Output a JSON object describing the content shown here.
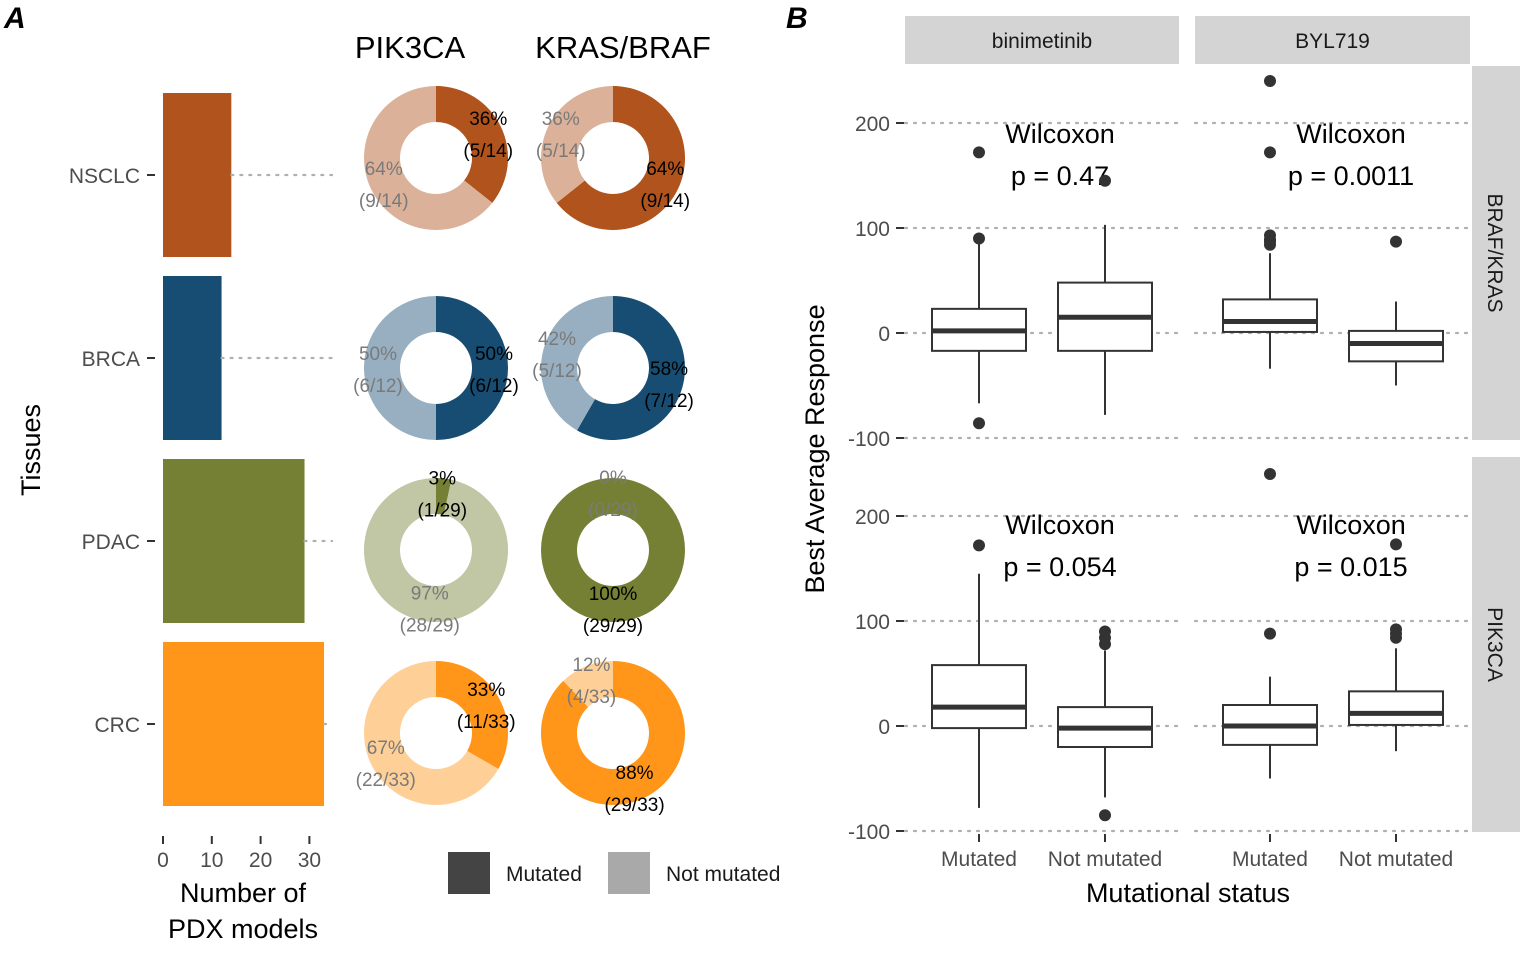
{
  "panel_labels": {
    "a": "A",
    "b": "B"
  },
  "colors": {
    "NSCLC": "#B0531C",
    "BRCA": "#174D72",
    "PDAC": "#758035",
    "CRC": "#FF9519",
    "legend_mutated": "#444444",
    "legend_not_mutated": "#A9A9A9",
    "strip": "#D4D4D4"
  },
  "chart_data": [
    {
      "type": "bar",
      "orientation": "horizontal",
      "categories": [
        "NSCLC",
        "BRCA",
        "PDAC",
        "CRC"
      ],
      "values": [
        14,
        12,
        29,
        33
      ],
      "xlabel": "Number of\nPDX models",
      "ylabel": "Tissues",
      "xlim": [
        0,
        33
      ],
      "xticks": [
        0,
        10,
        20,
        30
      ]
    },
    {
      "type": "pie",
      "variant": "donut",
      "column_titles": [
        "PIK3CA",
        "KRAS/BRAF"
      ],
      "legend": {
        "mutated": "Mutated",
        "not_mutated": "Not mutated"
      },
      "rows": [
        {
          "tissue": "NSCLC",
          "donuts": [
            {
              "gene": "PIK3CA",
              "mutated": 5,
              "total": 14,
              "mut_pct": "36%",
              "mut_frac": "(5/14)",
              "not_pct": "64%",
              "not_frac": "(9/14)"
            },
            {
              "gene": "KRAS/BRAF",
              "mutated": 9,
              "total": 14,
              "mut_pct": "64%",
              "mut_frac": "(9/14)",
              "not_pct": "36%",
              "not_frac": "(5/14)"
            }
          ]
        },
        {
          "tissue": "BRCA",
          "donuts": [
            {
              "gene": "PIK3CA",
              "mutated": 6,
              "total": 12,
              "mut_pct": "50%",
              "mut_frac": "(6/12)",
              "not_pct": "50%",
              "not_frac": "(6/12)"
            },
            {
              "gene": "KRAS/BRAF",
              "mutated": 7,
              "total": 12,
              "mut_pct": "58%",
              "mut_frac": "(7/12)",
              "not_pct": "42%",
              "not_frac": "(5/12)"
            }
          ]
        },
        {
          "tissue": "PDAC",
          "donuts": [
            {
              "gene": "PIK3CA",
              "mutated": 1,
              "total": 29,
              "mut_pct": "3%",
              "mut_frac": "(1/29)",
              "not_pct": "97%",
              "not_frac": "(28/29)"
            },
            {
              "gene": "KRAS/BRAF",
              "mutated": 29,
              "total": 29,
              "mut_pct": "100%",
              "mut_frac": "(29/29)",
              "not_pct": "0%",
              "not_frac": "(0/29)"
            }
          ]
        },
        {
          "tissue": "CRC",
          "donuts": [
            {
              "gene": "PIK3CA",
              "mutated": 11,
              "total": 33,
              "mut_pct": "33%",
              "mut_frac": "(11/33)",
              "not_pct": "67%",
              "not_frac": "(22/33)"
            },
            {
              "gene": "KRAS/BRAF",
              "mutated": 29,
              "total": 33,
              "mut_pct": "88%",
              "mut_frac": "(29/33)",
              "not_pct": "12%",
              "not_frac": "(4/33)"
            }
          ]
        }
      ]
    },
    {
      "type": "box",
      "facet_columns": [
        "binimetinib",
        "BYL719"
      ],
      "facet_rows": [
        "BRAF/KRAS",
        "PIK3CA"
      ],
      "categories": [
        "Mutated",
        "Not mutated"
      ],
      "xlabel": "Mutational status",
      "ylabel": "Best Average Response",
      "ylim": [
        -100,
        240
      ],
      "yticks": [
        -100,
        0,
        100,
        200
      ],
      "panels": [
        {
          "row": "BRAF/KRAS",
          "col": "binimetinib",
          "annotation": [
            "Wilcoxon",
            "p = 0.47"
          ],
          "boxes": [
            {
              "group": "Mutated",
              "whisker_low": -67,
              "q1": -17,
              "median": 2,
              "q3": 23,
              "whisker_high": 85,
              "outliers": [
                -86,
                90,
                172
              ]
            },
            {
              "group": "Not mutated",
              "whisker_low": -78,
              "q1": -17,
              "median": 15,
              "q3": 48,
              "whisker_high": 103,
              "outliers": [
                145
              ]
            }
          ]
        },
        {
          "row": "BRAF/KRAS",
          "col": "BYL719",
          "annotation": [
            "Wilcoxon",
            "p = 0.0011"
          ],
          "boxes": [
            {
              "group": "Mutated",
              "whisker_low": -34,
              "q1": 1,
              "median": 11,
              "q3": 32,
              "whisker_high": 76,
              "outliers": [
                84,
                87,
                89,
                93,
                172,
                240
              ]
            },
            {
              "group": "Not mutated",
              "whisker_low": -50,
              "q1": -27,
              "median": -10,
              "q3": 2,
              "whisker_high": 30,
              "outliers": [
                87
              ]
            }
          ]
        },
        {
          "row": "PIK3CA",
          "col": "binimetinib",
          "annotation": [
            "Wilcoxon",
            "p = 0.054"
          ],
          "boxes": [
            {
              "group": "Mutated",
              "whisker_low": -78,
              "q1": -2,
              "median": 18,
              "q3": 58,
              "whisker_high": 145,
              "outliers": [
                172
              ]
            },
            {
              "group": "Not mutated",
              "whisker_low": -68,
              "q1": -20,
              "median": -2,
              "q3": 18,
              "whisker_high": 72,
              "outliers": [
                -85,
                78,
                84,
                90
              ]
            }
          ]
        },
        {
          "row": "PIK3CA",
          "col": "BYL719",
          "annotation": [
            "Wilcoxon",
            "p = 0.015"
          ],
          "boxes": [
            {
              "group": "Mutated",
              "whisker_low": -50,
              "q1": -18,
              "median": 0,
              "q3": 20,
              "whisker_high": 47,
              "outliers": [
                88,
                240
              ]
            },
            {
              "group": "Not mutated",
              "whisker_low": -24,
              "q1": 1,
              "median": 12,
              "q3": 33,
              "whisker_high": 74,
              "outliers": [
                84,
                88,
                92,
                173
              ]
            }
          ]
        }
      ]
    }
  ]
}
